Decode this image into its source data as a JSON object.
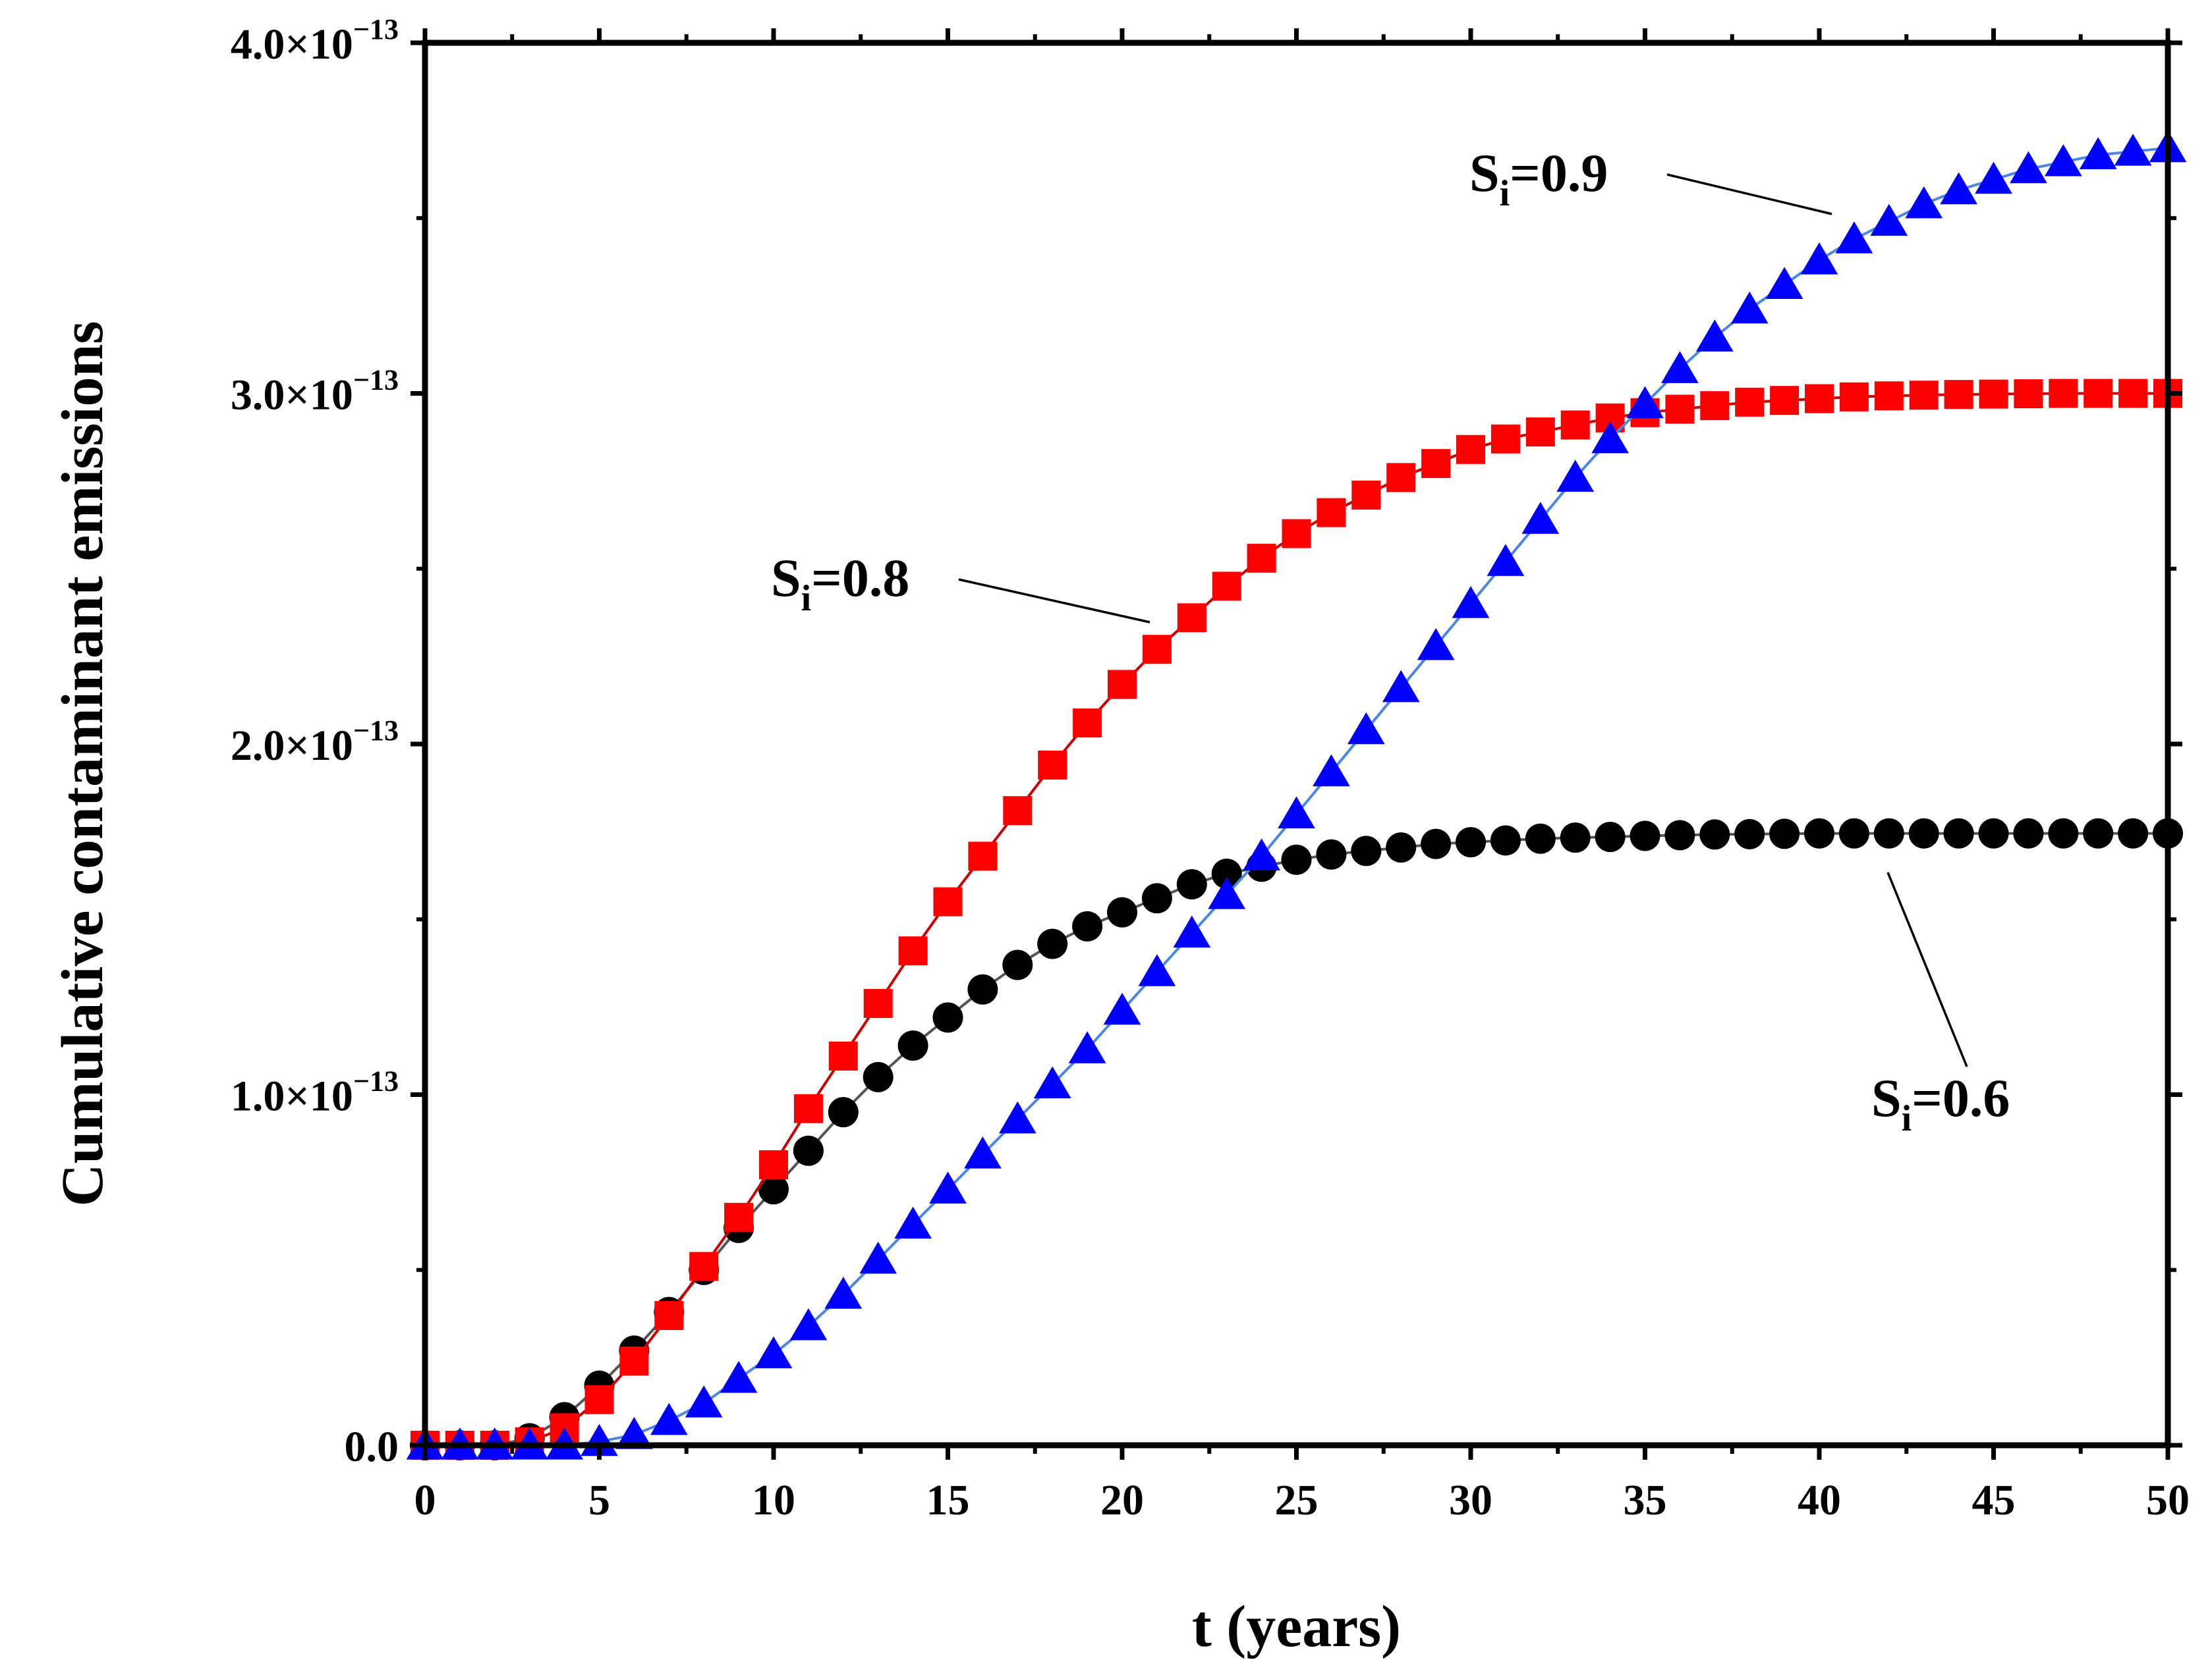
{
  "chart_data": {
    "type": "line",
    "title": "",
    "xlabel": "t (years)",
    "ylabel": "Cumulative contaminant emissions",
    "xlim": [
      0,
      50
    ],
    "ylim": [
      0,
      4e-13
    ],
    "grid": false,
    "x_ticks": [
      0,
      5,
      10,
      15,
      20,
      25,
      30,
      35,
      40,
      45,
      50
    ],
    "x_tick_labels": [
      "0",
      "5",
      "10",
      "15",
      "20",
      "25",
      "30",
      "35",
      "40",
      "45",
      "50"
    ],
    "y_ticks": [
      0,
      1e-13,
      2e-13,
      3e-13,
      4e-13
    ],
    "y_tick_labels": [
      {
        "mantissa": "0.0",
        "exponent": ""
      },
      {
        "mantissa": "1.0×10",
        "exponent": "−13"
      },
      {
        "mantissa": "2.0×10",
        "exponent": "−13"
      },
      {
        "mantissa": "3.0×10",
        "exponent": "−13"
      },
      {
        "mantissa": "4.0×10",
        "exponent": "−13"
      }
    ],
    "x": [
      0,
      1,
      2,
      3,
      4,
      5,
      6,
      7,
      8,
      9,
      10,
      11,
      12,
      13,
      14,
      15,
      16,
      17,
      18,
      19,
      20,
      21,
      22,
      23,
      24,
      25,
      26,
      27,
      28,
      29,
      30,
      31,
      32,
      33,
      34,
      35,
      36,
      37,
      38,
      39,
      40,
      41,
      42,
      43,
      44,
      45,
      46,
      47,
      48,
      49,
      50
    ],
    "series": [
      {
        "name": "Si=0.6",
        "label_main": "S",
        "label_sub": "i",
        "label_value": "=0.6",
        "marker": "circle",
        "color": "#000000",
        "line_color": "#555555",
        "values": [
          0,
          0,
          0,
          0.02,
          0.08,
          0.17,
          0.27,
          0.38,
          0.5,
          0.62,
          0.73,
          0.84,
          0.95,
          1.05,
          1.14,
          1.22,
          1.3,
          1.37,
          1.43,
          1.48,
          1.52,
          1.56,
          1.6,
          1.63,
          1.65,
          1.67,
          1.685,
          1.695,
          1.705,
          1.715,
          1.72,
          1.725,
          1.73,
          1.733,
          1.735,
          1.738,
          1.74,
          1.742,
          1.743,
          1.744,
          1.745,
          1.745,
          1.745,
          1.745,
          1.745,
          1.745,
          1.745,
          1.745,
          1.745,
          1.745,
          1.745
        ]
      },
      {
        "name": "Si=0.8",
        "label_main": "S",
        "label_sub": "i",
        "label_value": "=0.8",
        "marker": "square",
        "color": "#ff0000",
        "line_color": "#cc0000",
        "values": [
          0,
          0,
          0,
          0.01,
          0.05,
          0.13,
          0.24,
          0.37,
          0.51,
          0.65,
          0.8,
          0.96,
          1.11,
          1.26,
          1.41,
          1.55,
          1.68,
          1.81,
          1.94,
          2.06,
          2.17,
          2.27,
          2.36,
          2.45,
          2.53,
          2.6,
          2.66,
          2.71,
          2.76,
          2.8,
          2.84,
          2.87,
          2.89,
          2.91,
          2.93,
          2.945,
          2.955,
          2.965,
          2.975,
          2.98,
          2.985,
          2.99,
          2.993,
          2.995,
          2.997,
          2.998,
          2.999,
          3.0,
          3.0,
          3.0,
          3.0
        ]
      },
      {
        "name": "Si=0.9",
        "label_main": "S",
        "label_sub": "i",
        "label_value": "=0.9",
        "marker": "triangle",
        "color": "#0000ff",
        "line_color": "#4a86e8",
        "values": [
          0,
          0,
          0,
          0,
          0,
          0.01,
          0.03,
          0.07,
          0.12,
          0.19,
          0.26,
          0.34,
          0.43,
          0.53,
          0.63,
          0.73,
          0.83,
          0.93,
          1.03,
          1.13,
          1.24,
          1.35,
          1.46,
          1.57,
          1.68,
          1.8,
          1.92,
          2.04,
          2.16,
          2.28,
          2.4,
          2.52,
          2.64,
          2.76,
          2.87,
          2.97,
          3.07,
          3.16,
          3.24,
          3.31,
          3.38,
          3.44,
          3.49,
          3.54,
          3.58,
          3.61,
          3.64,
          3.66,
          3.68,
          3.69,
          3.7
        ]
      }
    ],
    "values_unit_scale": 1e-13
  }
}
